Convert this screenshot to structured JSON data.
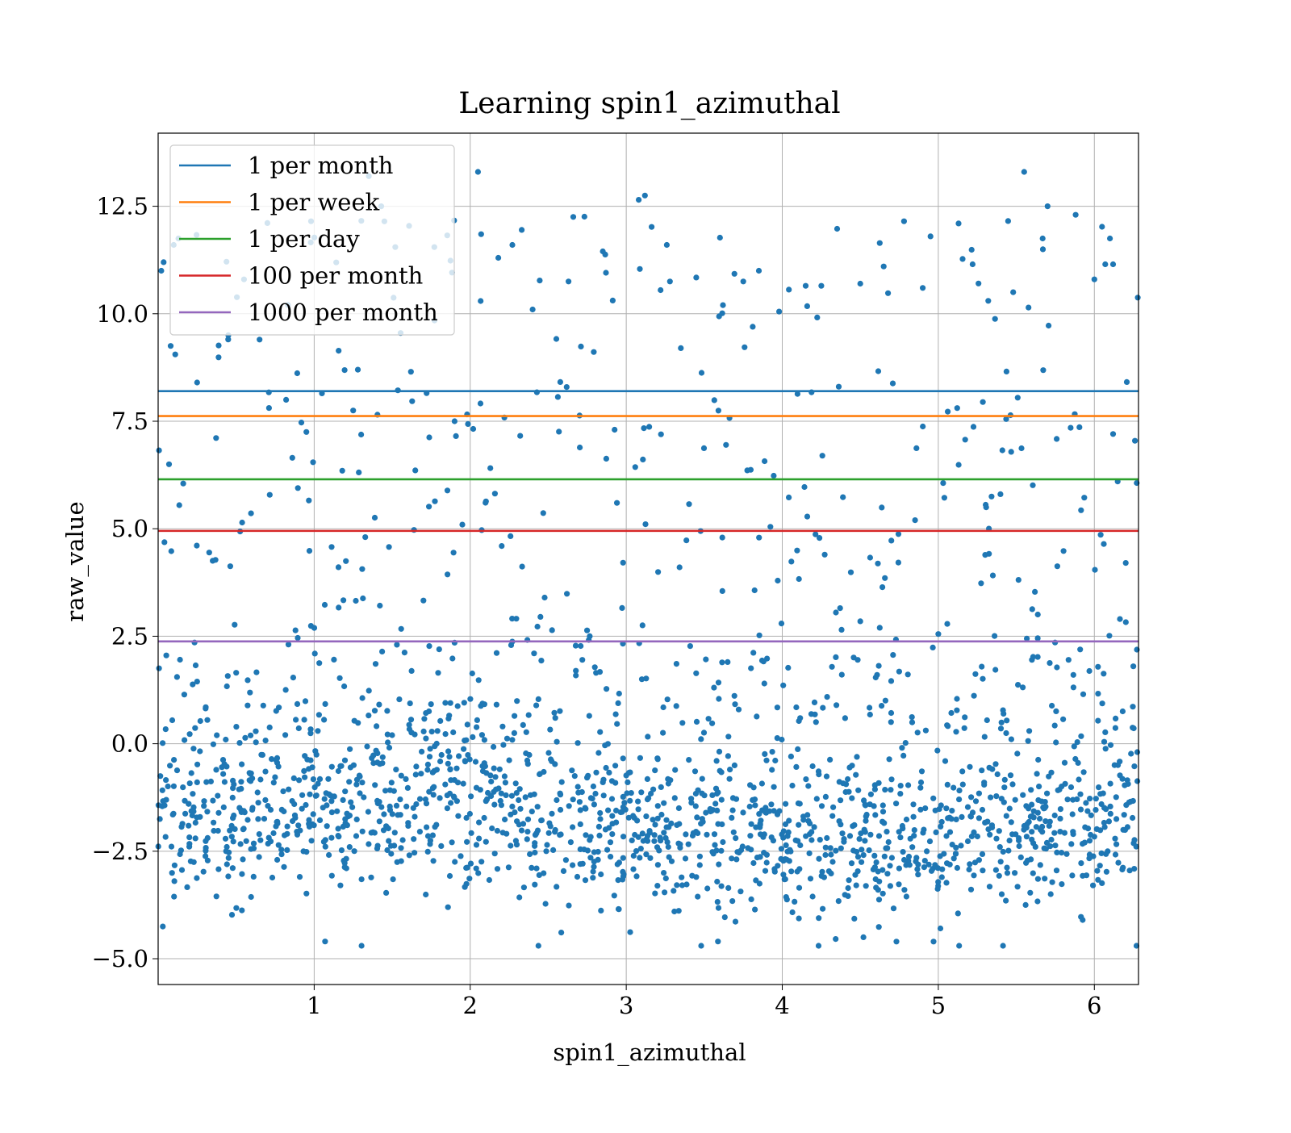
{
  "chart_data": {
    "type": "scatter",
    "title": "Learning spin1_azimuthal",
    "xlabel": "spin1_azimuthal",
    "ylabel": "raw_value",
    "xlim": [
      0.0,
      6.283
    ],
    "ylim": [
      -5.6,
      14.2
    ],
    "xticks": [
      1,
      2,
      3,
      4,
      5,
      6
    ],
    "xtick_labels": [
      "1",
      "2",
      "3",
      "4",
      "5",
      "6"
    ],
    "yticks": [
      -5.0,
      -2.5,
      0.0,
      2.5,
      5.0,
      7.5,
      10.0,
      12.5
    ],
    "ytick_labels": [
      "−5.0",
      "−2.5",
      "0.0",
      "2.5",
      "5.0",
      "7.5",
      "10.0",
      "12.5"
    ],
    "grid": true,
    "legend_position": "top-left",
    "scatter_color": "#1f77b4",
    "scatter_point_count": 2000,
    "scatter_points_sample": [
      [
        0.02,
        11.0
      ],
      [
        0.07,
        6.5
      ],
      [
        0.08,
        9.25
      ],
      [
        0.1,
        11.6
      ],
      [
        0.13,
        11.75
      ],
      [
        0.25,
        8.4
      ],
      [
        0.45,
        9.5
      ],
      [
        0.55,
        10.8
      ],
      [
        0.65,
        9.4
      ],
      [
        0.82,
        8.0
      ],
      [
        0.86,
        6.65
      ],
      [
        0.95,
        7.25
      ],
      [
        0.98,
        12.15
      ],
      [
        1.05,
        8.15
      ],
      [
        1.18,
        6.35
      ],
      [
        1.25,
        7.75
      ],
      [
        1.28,
        8.7
      ],
      [
        1.35,
        13.2
      ],
      [
        1.43,
        12.5
      ],
      [
        1.52,
        11.55
      ],
      [
        1.62,
        8.65
      ],
      [
        1.77,
        11.55
      ],
      [
        1.9,
        7.5
      ],
      [
        2.05,
        13.3
      ],
      [
        2.07,
        11.85
      ],
      [
        2.18,
        11.3
      ],
      [
        2.27,
        11.6
      ],
      [
        2.33,
        11.95
      ],
      [
        2.4,
        10.1
      ],
      [
        2.63,
        10.75
      ],
      [
        2.85,
        11.45
      ],
      [
        3.08,
        12.65
      ],
      [
        3.12,
        12.75
      ],
      [
        3.22,
        10.55
      ],
      [
        3.26,
        11.6
      ],
      [
        3.28,
        10.75
      ],
      [
        3.35,
        9.2
      ],
      [
        3.62,
        10.2
      ],
      [
        3.75,
        10.75
      ],
      [
        3.85,
        11.0
      ],
      [
        3.98,
        10.05
      ],
      [
        4.15,
        10.65
      ],
      [
        4.25,
        10.65
      ],
      [
        4.5,
        10.7
      ],
      [
        4.65,
        11.1
      ],
      [
        4.78,
        12.15
      ],
      [
        4.9,
        10.6
      ],
      [
        4.95,
        11.8
      ],
      [
        5.13,
        12.1
      ],
      [
        5.22,
        11.15
      ],
      [
        5.32,
        10.3
      ],
      [
        5.48,
        10.5
      ],
      [
        5.55,
        13.3
      ],
      [
        5.67,
        11.5
      ],
      [
        5.7,
        12.5
      ],
      [
        5.88,
        12.3
      ],
      [
        6.0,
        10.8
      ],
      [
        6.07,
        11.15
      ],
      [
        6.1,
        11.75
      ],
      [
        6.12,
        11.15
      ],
      [
        0.03,
        -4.25
      ],
      [
        1.07,
        -4.6
      ],
      [
        3.48,
        -4.7
      ],
      [
        4.52,
        -4.5
      ],
      [
        6.27,
        -4.7
      ],
      [
        0.5,
        1.65
      ],
      [
        1.9,
        2.35
      ],
      [
        2.45,
        2.95
      ],
      [
        3.1,
        1.5
      ],
      [
        3.65,
        1.9
      ],
      [
        4.38,
        2.65
      ],
      [
        5.0,
        2.55
      ],
      [
        5.6,
        1.95
      ],
      [
        6.25,
        1.8
      ]
    ],
    "series": [
      {
        "name": "1 per month",
        "type": "hline",
        "y": 8.2,
        "color": "#1f77b4"
      },
      {
        "name": "1 per week",
        "type": "hline",
        "y": 7.62,
        "color": "#ff7f0e"
      },
      {
        "name": "1 per day",
        "type": "hline",
        "y": 6.15,
        "color": "#2ca02c"
      },
      {
        "name": "100 per month",
        "type": "hline",
        "y": 4.95,
        "color": "#d62728"
      },
      {
        "name": "1000 per month",
        "type": "hline",
        "y": 2.38,
        "color": "#9467bd"
      }
    ]
  }
}
